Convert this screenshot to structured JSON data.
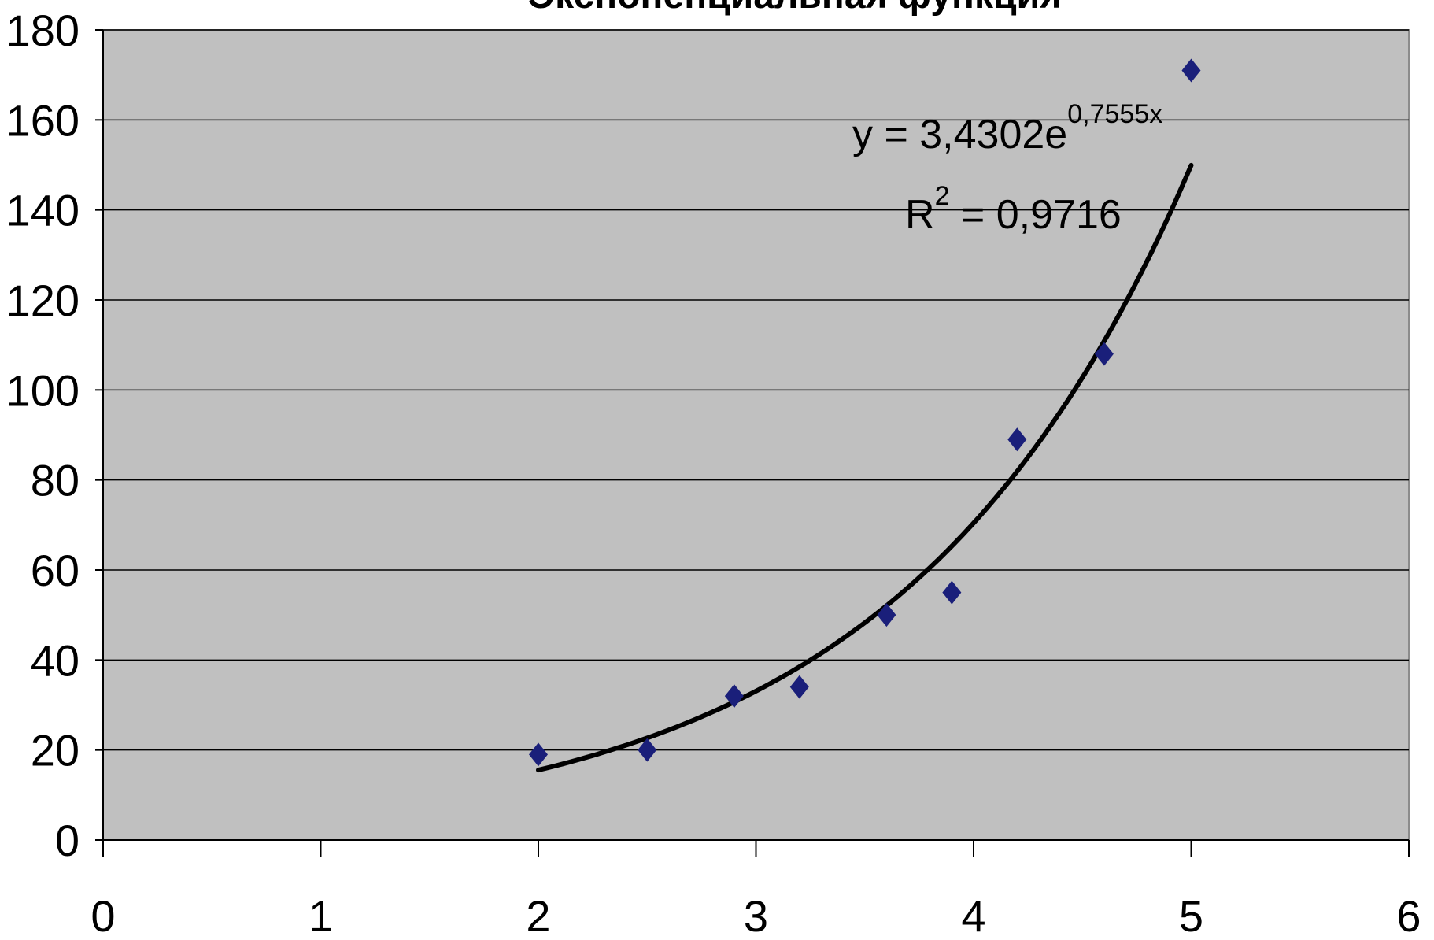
{
  "chart_data": {
    "type": "scatter",
    "title": "Экспоненциальная функция",
    "xlabel": "",
    "ylabel": "",
    "xlim": [
      0,
      6
    ],
    "ylim": [
      0,
      180
    ],
    "x_ticks": [
      0,
      1,
      2,
      3,
      4,
      5,
      6
    ],
    "y_ticks": [
      0,
      20,
      40,
      60,
      80,
      100,
      120,
      140,
      160,
      180
    ],
    "grid": true,
    "legend": "none",
    "series": [
      {
        "x": [
          2.0,
          2.5,
          2.9,
          3.2,
          3.6,
          3.9,
          4.2,
          4.6,
          5.0
        ],
        "y": [
          19,
          20,
          32,
          34,
          50,
          55,
          89,
          108,
          171
        ],
        "color": "#1a1f7a",
        "marker": "diamond"
      }
    ],
    "trendline": {
      "type": "exponential",
      "a": 3.4302,
      "b": 0.7555,
      "x_range": [
        2,
        5
      ],
      "color": "#000000",
      "equation_prefix": "y = 3,4302e",
      "equation_exponent": "0,7555x",
      "r2_prefix": "R",
      "r2_sup": "2",
      "r2_suffix": " = 0,9716"
    },
    "plot_area_color": "#c0c0c0"
  }
}
